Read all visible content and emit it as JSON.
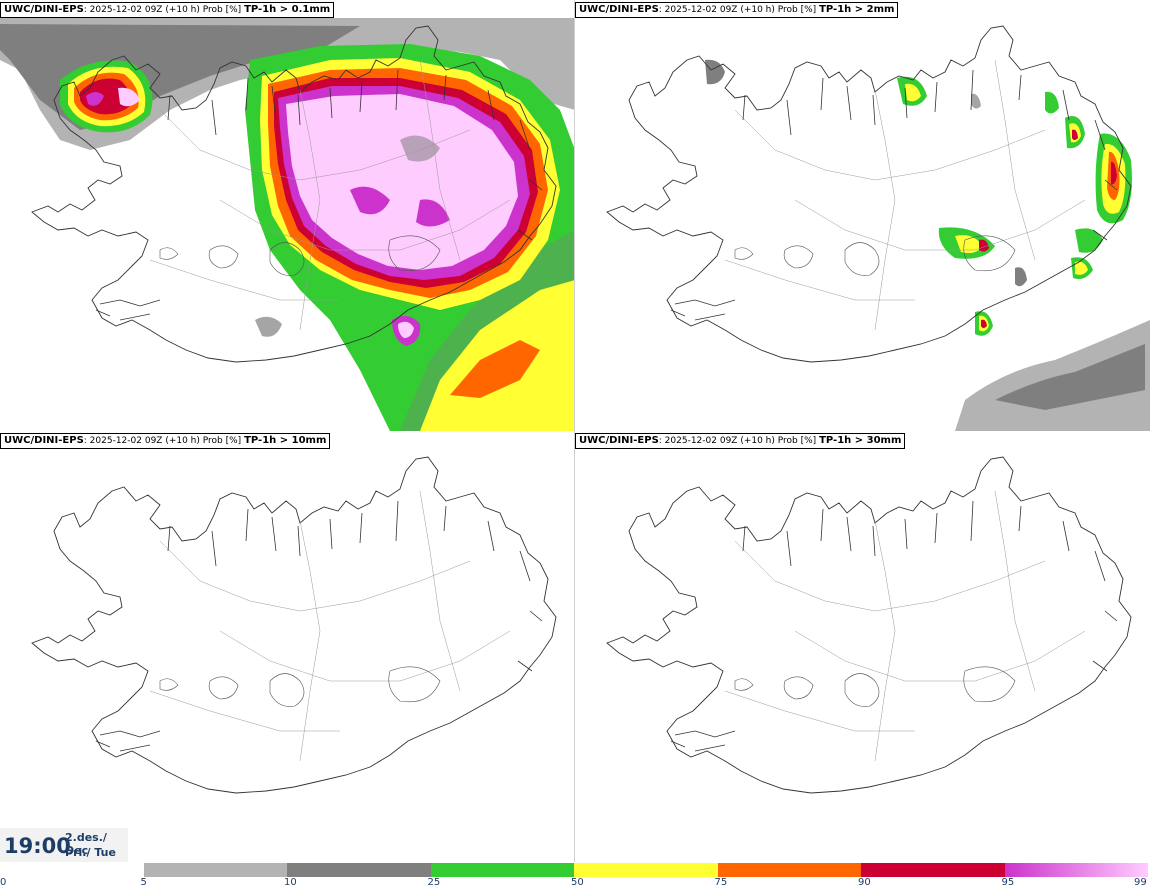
{
  "panels": [
    {
      "source": "UWC/DINI-EPS",
      "run": "2025-12-02 09Z (+10 h) Prob [%]",
      "param": "TP-1h > 0.1mm"
    },
    {
      "source": "UWC/DINI-EPS",
      "run": "2025-12-02 09Z (+10 h) Prob [%]",
      "param": "TP-1h > 2mm"
    },
    {
      "source": "UWC/DINI-EPS",
      "run": "2025-12-02 09Z (+10 h) Prob [%]",
      "param": "TP-1h > 10mm"
    },
    {
      "source": "UWC/DINI-EPS",
      "run": "2025-12-02 09Z (+10 h) Prob [%]",
      "param": "TP-1h > 30mm"
    }
  ],
  "valid": {
    "time": "19:00",
    "date": "2.des./ Dec",
    "weekday": "Þri./ Tue"
  },
  "colorbar": {
    "ticks": [
      "0",
      "5",
      "10",
      "25",
      "50",
      "75",
      "90",
      "95",
      "99"
    ],
    "colors": [
      "#ffffff",
      "#b3b3b3",
      "#7f7f7f",
      "#33cc33",
      "#ffff33",
      "#ff6600",
      "#cc0033",
      "#cc33cc",
      "#ffccff"
    ],
    "accent": "#1c3d66"
  }
}
